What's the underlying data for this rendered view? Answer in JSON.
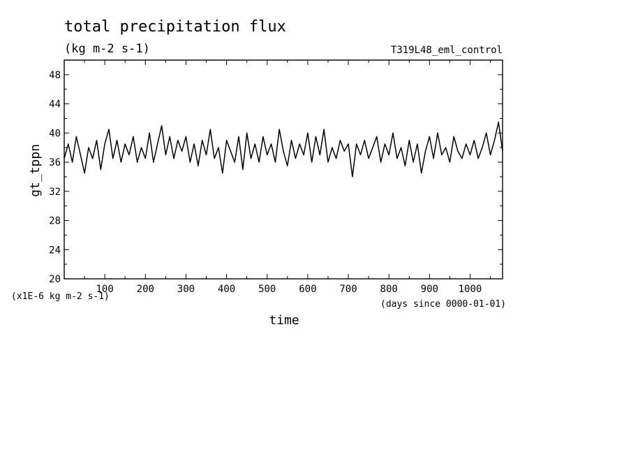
{
  "chart_data": {
    "type": "line",
    "title": "total precipitation flux",
    "subtitle": "(kg m-2 s-1)",
    "run_label": "T319L48_eml_control",
    "ylabel": "gt_tppn",
    "xlabel": "time",
    "y_unit_label": "(x1E-6 kg m-2 s-1)",
    "x_unit_label": "(days since 0000-01-01)",
    "xlim": [
      0,
      1080
    ],
    "ylim": [
      20,
      50
    ],
    "x_ticks": [
      100,
      200,
      300,
      400,
      500,
      600,
      700,
      800,
      900,
      1000
    ],
    "y_ticks": [
      20,
      24,
      28,
      32,
      36,
      40,
      44,
      48
    ],
    "x_tick_labels": [
      "100",
      "200",
      "300",
      "400",
      "500",
      "600",
      "700",
      "800",
      "900",
      "1000"
    ],
    "y_tick_labels": [
      "20",
      "24",
      "28",
      "32",
      "36",
      "40",
      "44",
      "48"
    ],
    "series": [
      {
        "x": [
          0,
          10,
          20,
          30,
          40,
          50,
          60,
          70,
          80,
          90,
          100,
          110,
          120,
          130,
          140,
          150,
          160,
          170,
          180,
          190,
          200,
          210,
          220,
          230,
          240,
          250,
          260,
          270,
          280,
          290,
          300,
          310,
          320,
          330,
          340,
          350,
          360,
          370,
          380,
          390,
          400,
          410,
          420,
          430,
          440,
          450,
          460,
          470,
          480,
          490,
          500,
          510,
          520,
          530,
          540,
          550,
          560,
          570,
          580,
          590,
          600,
          610,
          620,
          630,
          640,
          650,
          660,
          670,
          680,
          690,
          700,
          710,
          720,
          730,
          740,
          750,
          760,
          770,
          780,
          790,
          800,
          810,
          820,
          830,
          840,
          850,
          860,
          870,
          880,
          890,
          900,
          910,
          920,
          930,
          940,
          950,
          960,
          970,
          980,
          990,
          1000,
          1010,
          1020,
          1030,
          1040,
          1050,
          1060,
          1070,
          1080
        ],
        "y": [
          36.5,
          38.5,
          36.0,
          39.5,
          37.0,
          34.5,
          38.0,
          36.5,
          39.0,
          35.0,
          38.5,
          40.5,
          36.5,
          39.0,
          36.0,
          38.5,
          37.0,
          39.5,
          36.0,
          38.0,
          36.5,
          40.0,
          36.0,
          38.5,
          41.0,
          37.0,
          39.5,
          36.5,
          39.0,
          37.5,
          39.5,
          36.0,
          38.5,
          35.5,
          39.0,
          37.0,
          40.5,
          36.5,
          38.0,
          34.5,
          39.0,
          37.5,
          36.0,
          39.5,
          35.0,
          40.0,
          36.5,
          38.5,
          36.0,
          39.5,
          37.0,
          38.5,
          36.0,
          40.5,
          37.5,
          35.5,
          39.0,
          36.5,
          38.5,
          37.0,
          40.0,
          36.0,
          39.5,
          37.0,
          40.5,
          36.0,
          38.0,
          36.5,
          39.0,
          37.5,
          38.5,
          34.0,
          38.5,
          37.0,
          39.0,
          36.5,
          38.0,
          39.5,
          36.0,
          38.5,
          37.0,
          40.0,
          36.5,
          38.0,
          35.5,
          39.0,
          36.0,
          38.5,
          34.5,
          37.5,
          39.5,
          36.5,
          40.0,
          37.0,
          38.0,
          36.0,
          39.5,
          37.5,
          36.5,
          38.5,
          37.0,
          39.0,
          36.5,
          38.0,
          40.0,
          37.0,
          39.0,
          41.5,
          37.5
        ]
      }
    ],
    "grid": false
  }
}
